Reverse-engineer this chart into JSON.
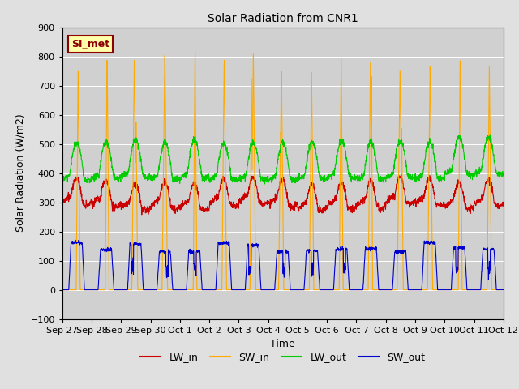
{
  "title": "Solar Radiation from CNR1",
  "xlabel": "Time",
  "ylabel": "Solar Radiation (W/m2)",
  "ylim": [
    -100,
    900
  ],
  "yticks": [
    -100,
    0,
    100,
    200,
    300,
    400,
    500,
    600,
    700,
    800,
    900
  ],
  "annotation_text": "SI_met",
  "annotation_bg": "#ffffaa",
  "annotation_border": "#8b0000",
  "annotation_text_color": "#8b0000",
  "x_tick_labels": [
    "Sep 27",
    "Sep 28",
    "Sep 29",
    "Sep 30",
    "Oct 1",
    "Oct 2",
    "Oct 3",
    "Oct 4",
    "Oct 5",
    "Oct 6",
    "Oct 7",
    "Oct 8",
    "Oct 9",
    "Oct 10",
    "Oct 11",
    "Oct 12"
  ],
  "colors": {
    "LW_in": "#cc0000",
    "SW_in": "#ffaa00",
    "LW_out": "#00cc00",
    "SW_out": "#0000cc"
  },
  "num_days": 15,
  "pts_per_day": 144
}
